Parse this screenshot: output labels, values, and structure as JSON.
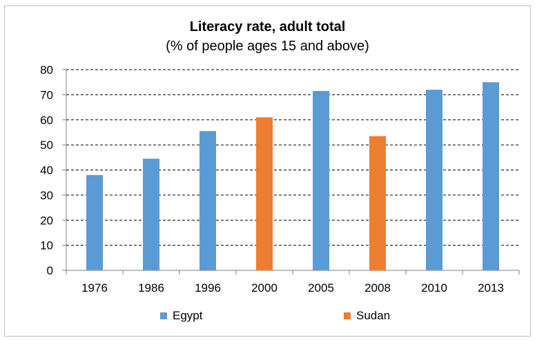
{
  "chart_data": {
    "type": "bar",
    "title": "Literacy rate, adult total",
    "subtitle": "(% of people ages 15 and above)",
    "xlabel": "",
    "ylabel": "",
    "ylim": [
      0,
      80
    ],
    "yticks": [
      0,
      10,
      20,
      30,
      40,
      50,
      60,
      70,
      80
    ],
    "grid": true,
    "legend_position": "bottom",
    "categories": [
      "1976",
      "1986",
      "1996",
      "2000",
      "2005",
      "2008",
      "2010",
      "2013"
    ],
    "series": [
      {
        "name": "Egypt",
        "color": "#5b9bd5",
        "values": [
          38,
          44.5,
          55.5,
          null,
          71.5,
          null,
          72,
          75
        ]
      },
      {
        "name": "Sudan",
        "color": "#ed7d31",
        "values": [
          null,
          null,
          null,
          61,
          null,
          53.5,
          null,
          null
        ]
      }
    ]
  }
}
